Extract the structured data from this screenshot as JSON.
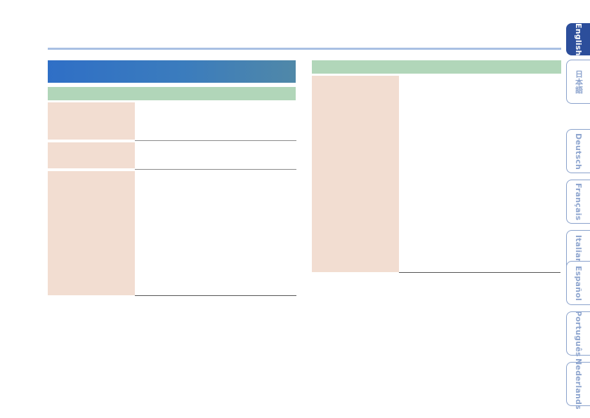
{
  "language_tabs": [
    {
      "label": "English",
      "active": true
    },
    {
      "label": "日本語",
      "active": false
    },
    {
      "label": "Deutsch",
      "active": false
    },
    {
      "label": "Français",
      "active": false
    },
    {
      "label": "Italiano",
      "active": false
    },
    {
      "label": "Español",
      "active": false
    },
    {
      "label": "Português",
      "active": false
    },
    {
      "label": "Nederlands",
      "active": false
    }
  ],
  "colors": {
    "header_blue": "#2f6fc6",
    "section_green": "#b1d6b9",
    "label_peach": "#f2ddd1",
    "tab_active": "#2c4e9b",
    "tab_text": "#8fa6cf"
  }
}
